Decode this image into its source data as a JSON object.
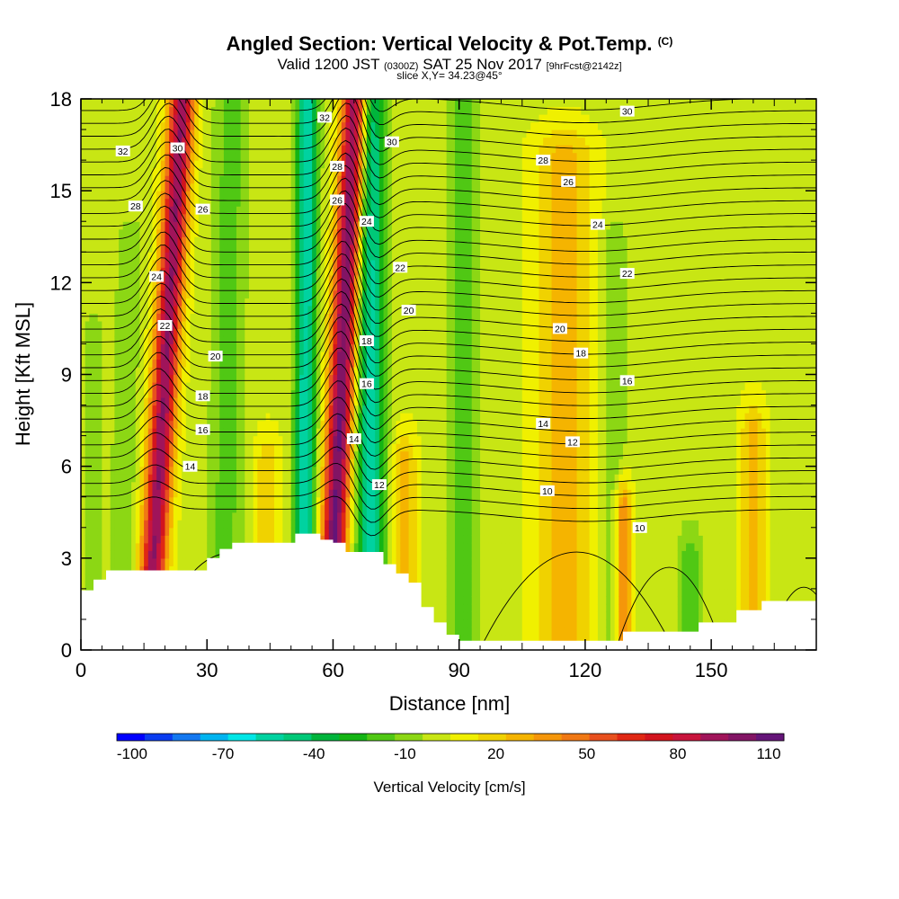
{
  "header": {
    "title": "Angled Section: Vertical Velocity & Pot.Temp.",
    "copyright": "(C)",
    "valid_prefix": "Valid 1200 JST",
    "valid_utc": "(0300Z)",
    "valid_date": "SAT 25 Nov 2017",
    "forecast": "[9hrFcst@2142z]",
    "slice": "slice X,Y= 34.23@45°"
  },
  "chart_data": {
    "type": "heatmap",
    "title": "Angled Section: Vertical Velocity & Pot.Temp.",
    "xlabel": "Distance [nm]",
    "ylabel": "Height [Kft MSL]",
    "xlim": [
      0,
      175
    ],
    "ylim": [
      0,
      18
    ],
    "x_ticks": [
      0,
      30,
      60,
      90,
      120,
      150
    ],
    "y_ticks": [
      0,
      3,
      6,
      9,
      12,
      15,
      18
    ],
    "colorbar": {
      "label": "Vertical Velocity [cm/s]",
      "tick_labels": [
        -100,
        -70,
        -40,
        -10,
        20,
        50,
        80,
        110
      ],
      "colors": [
        "#0000ff",
        "#0a3cf0",
        "#1478f0",
        "#00b4f0",
        "#00e6e6",
        "#00d2a0",
        "#00c878",
        "#00b43c",
        "#14b414",
        "#50c814",
        "#8cd714",
        "#c8e614",
        "#f0f000",
        "#f0d200",
        "#f5b400",
        "#f5960a",
        "#f07814",
        "#e8501e",
        "#e02814",
        "#d2141e",
        "#c8143c",
        "#a0145a",
        "#821464",
        "#641478"
      ],
      "min": -105,
      "max": 115
    },
    "terrain_profile": {
      "x": [
        0,
        3,
        6,
        9,
        12,
        15,
        18,
        21,
        24,
        27,
        30,
        33,
        36,
        39,
        42,
        45,
        48,
        51,
        54,
        57,
        60,
        63,
        66,
        69,
        72,
        75,
        78,
        81,
        84,
        87,
        90,
        93,
        96,
        99,
        102,
        105,
        108,
        111,
        114,
        117,
        120,
        123,
        126,
        129,
        132,
        135,
        138,
        141,
        144,
        147,
        150,
        153,
        156,
        159,
        162,
        165,
        168,
        171,
        175
      ],
      "height": [
        1.95,
        2.3,
        2.6,
        2.6,
        2.6,
        2.6,
        2.6,
        2.6,
        2.6,
        2.6,
        3.0,
        3.3,
        3.5,
        3.5,
        3.5,
        3.5,
        3.5,
        3.8,
        3.8,
        3.6,
        3.5,
        3.2,
        3.2,
        3.2,
        2.8,
        2.5,
        2.2,
        1.4,
        0.9,
        0.5,
        0.3,
        0.3,
        0.3,
        0.3,
        0.3,
        0.3,
        0.3,
        0.3,
        0.3,
        0.3,
        0.3,
        0.3,
        0.3,
        0.6,
        0.6,
        0.6,
        0.6,
        0.6,
        0.6,
        0.9,
        0.9,
        0.9,
        1.3,
        1.3,
        1.6,
        1.6,
        1.6,
        1.6,
        1.6
      ]
    },
    "vertical_velocity_features": [
      {
        "x_center": 3,
        "half_width": 2,
        "tilt": 0,
        "top": 10,
        "value": -15
      },
      {
        "x_center": 16,
        "half_width": 3,
        "tilt": 0.45,
        "top": 18,
        "value": 95
      },
      {
        "x_center": 9,
        "half_width": 3,
        "tilt": 0.2,
        "top": 13,
        "value": -15
      },
      {
        "x_center": 34,
        "half_width": 4,
        "tilt": 0.1,
        "top": 18,
        "value": -20
      },
      {
        "x_center": 44,
        "half_width": 3,
        "tilt": 0.05,
        "top": 6,
        "value": 20
      },
      {
        "x_center": 53,
        "half_width": 2.5,
        "tilt": 0.05,
        "top": 18,
        "value": -60
      },
      {
        "x_center": 59,
        "half_width": 3,
        "tilt": 0.35,
        "top": 18,
        "value": 105
      },
      {
        "x_center": 69,
        "half_width": 3.5,
        "tilt": 0,
        "top": 18,
        "value": -55
      },
      {
        "x_center": 77,
        "half_width": 3,
        "tilt": 0,
        "top": 6,
        "value": 25
      },
      {
        "x_center": 91,
        "half_width": 3,
        "tilt": 0,
        "top": 18,
        "value": -25
      },
      {
        "x_center": 115,
        "half_width": 7,
        "tilt": 0,
        "top": 16,
        "value": 25
      },
      {
        "x_center": 127,
        "half_width": 3,
        "tilt": 0,
        "top": 13,
        "value": -15
      },
      {
        "x_center": 129,
        "half_width": 2,
        "tilt": 0,
        "top": 4.5,
        "value": 45
      },
      {
        "x_center": 145,
        "half_width": 3,
        "tilt": 0,
        "top": 3,
        "value": -20
      },
      {
        "x_center": 160,
        "half_width": 3,
        "tilt": 0,
        "top": 7,
        "value": 25
      }
    ],
    "potential_temperature_labels": [
      {
        "value": "32",
        "x": 10,
        "y": 16.3
      },
      {
        "value": "30",
        "x": 23,
        "y": 16.4
      },
      {
        "value": "28",
        "x": 13,
        "y": 14.5
      },
      {
        "value": "26",
        "x": 29,
        "y": 14.4
      },
      {
        "value": "24",
        "x": 18,
        "y": 12.2
      },
      {
        "value": "22",
        "x": 20,
        "y": 10.6
      },
      {
        "value": "20",
        "x": 32,
        "y": 9.6
      },
      {
        "value": "18",
        "x": 29,
        "y": 8.3
      },
      {
        "value": "16",
        "x": 29,
        "y": 7.2
      },
      {
        "value": "14",
        "x": 26,
        "y": 6.0
      },
      {
        "value": "32",
        "x": 58,
        "y": 17.4
      },
      {
        "value": "28",
        "x": 61,
        "y": 15.8
      },
      {
        "value": "26",
        "x": 61,
        "y": 14.7
      },
      {
        "value": "24",
        "x": 68,
        "y": 14.0
      },
      {
        "value": "30",
        "x": 74,
        "y": 16.6
      },
      {
        "value": "22",
        "x": 76,
        "y": 12.5
      },
      {
        "value": "20",
        "x": 78,
        "y": 11.1
      },
      {
        "value": "18",
        "x": 68,
        "y": 10.1
      },
      {
        "value": "16",
        "x": 68,
        "y": 8.7
      },
      {
        "value": "14",
        "x": 65,
        "y": 6.9
      },
      {
        "value": "12",
        "x": 71,
        "y": 5.4
      },
      {
        "value": "30",
        "x": 130,
        "y": 17.6
      },
      {
        "value": "28",
        "x": 110,
        "y": 16.0
      },
      {
        "value": "26",
        "x": 116,
        "y": 15.3
      },
      {
        "value": "24",
        "x": 123,
        "y": 13.9
      },
      {
        "value": "22",
        "x": 130,
        "y": 12.3
      },
      {
        "value": "20",
        "x": 114,
        "y": 10.5
      },
      {
        "value": "18",
        "x": 119,
        "y": 9.7
      },
      {
        "value": "16",
        "x": 130,
        "y": 8.8
      },
      {
        "value": "14",
        "x": 110,
        "y": 7.4
      },
      {
        "value": "12",
        "x": 117,
        "y": 6.8
      },
      {
        "value": "10",
        "x": 111,
        "y": 5.2
      },
      {
        "value": "10",
        "x": 133,
        "y": 4.0
      }
    ]
  }
}
